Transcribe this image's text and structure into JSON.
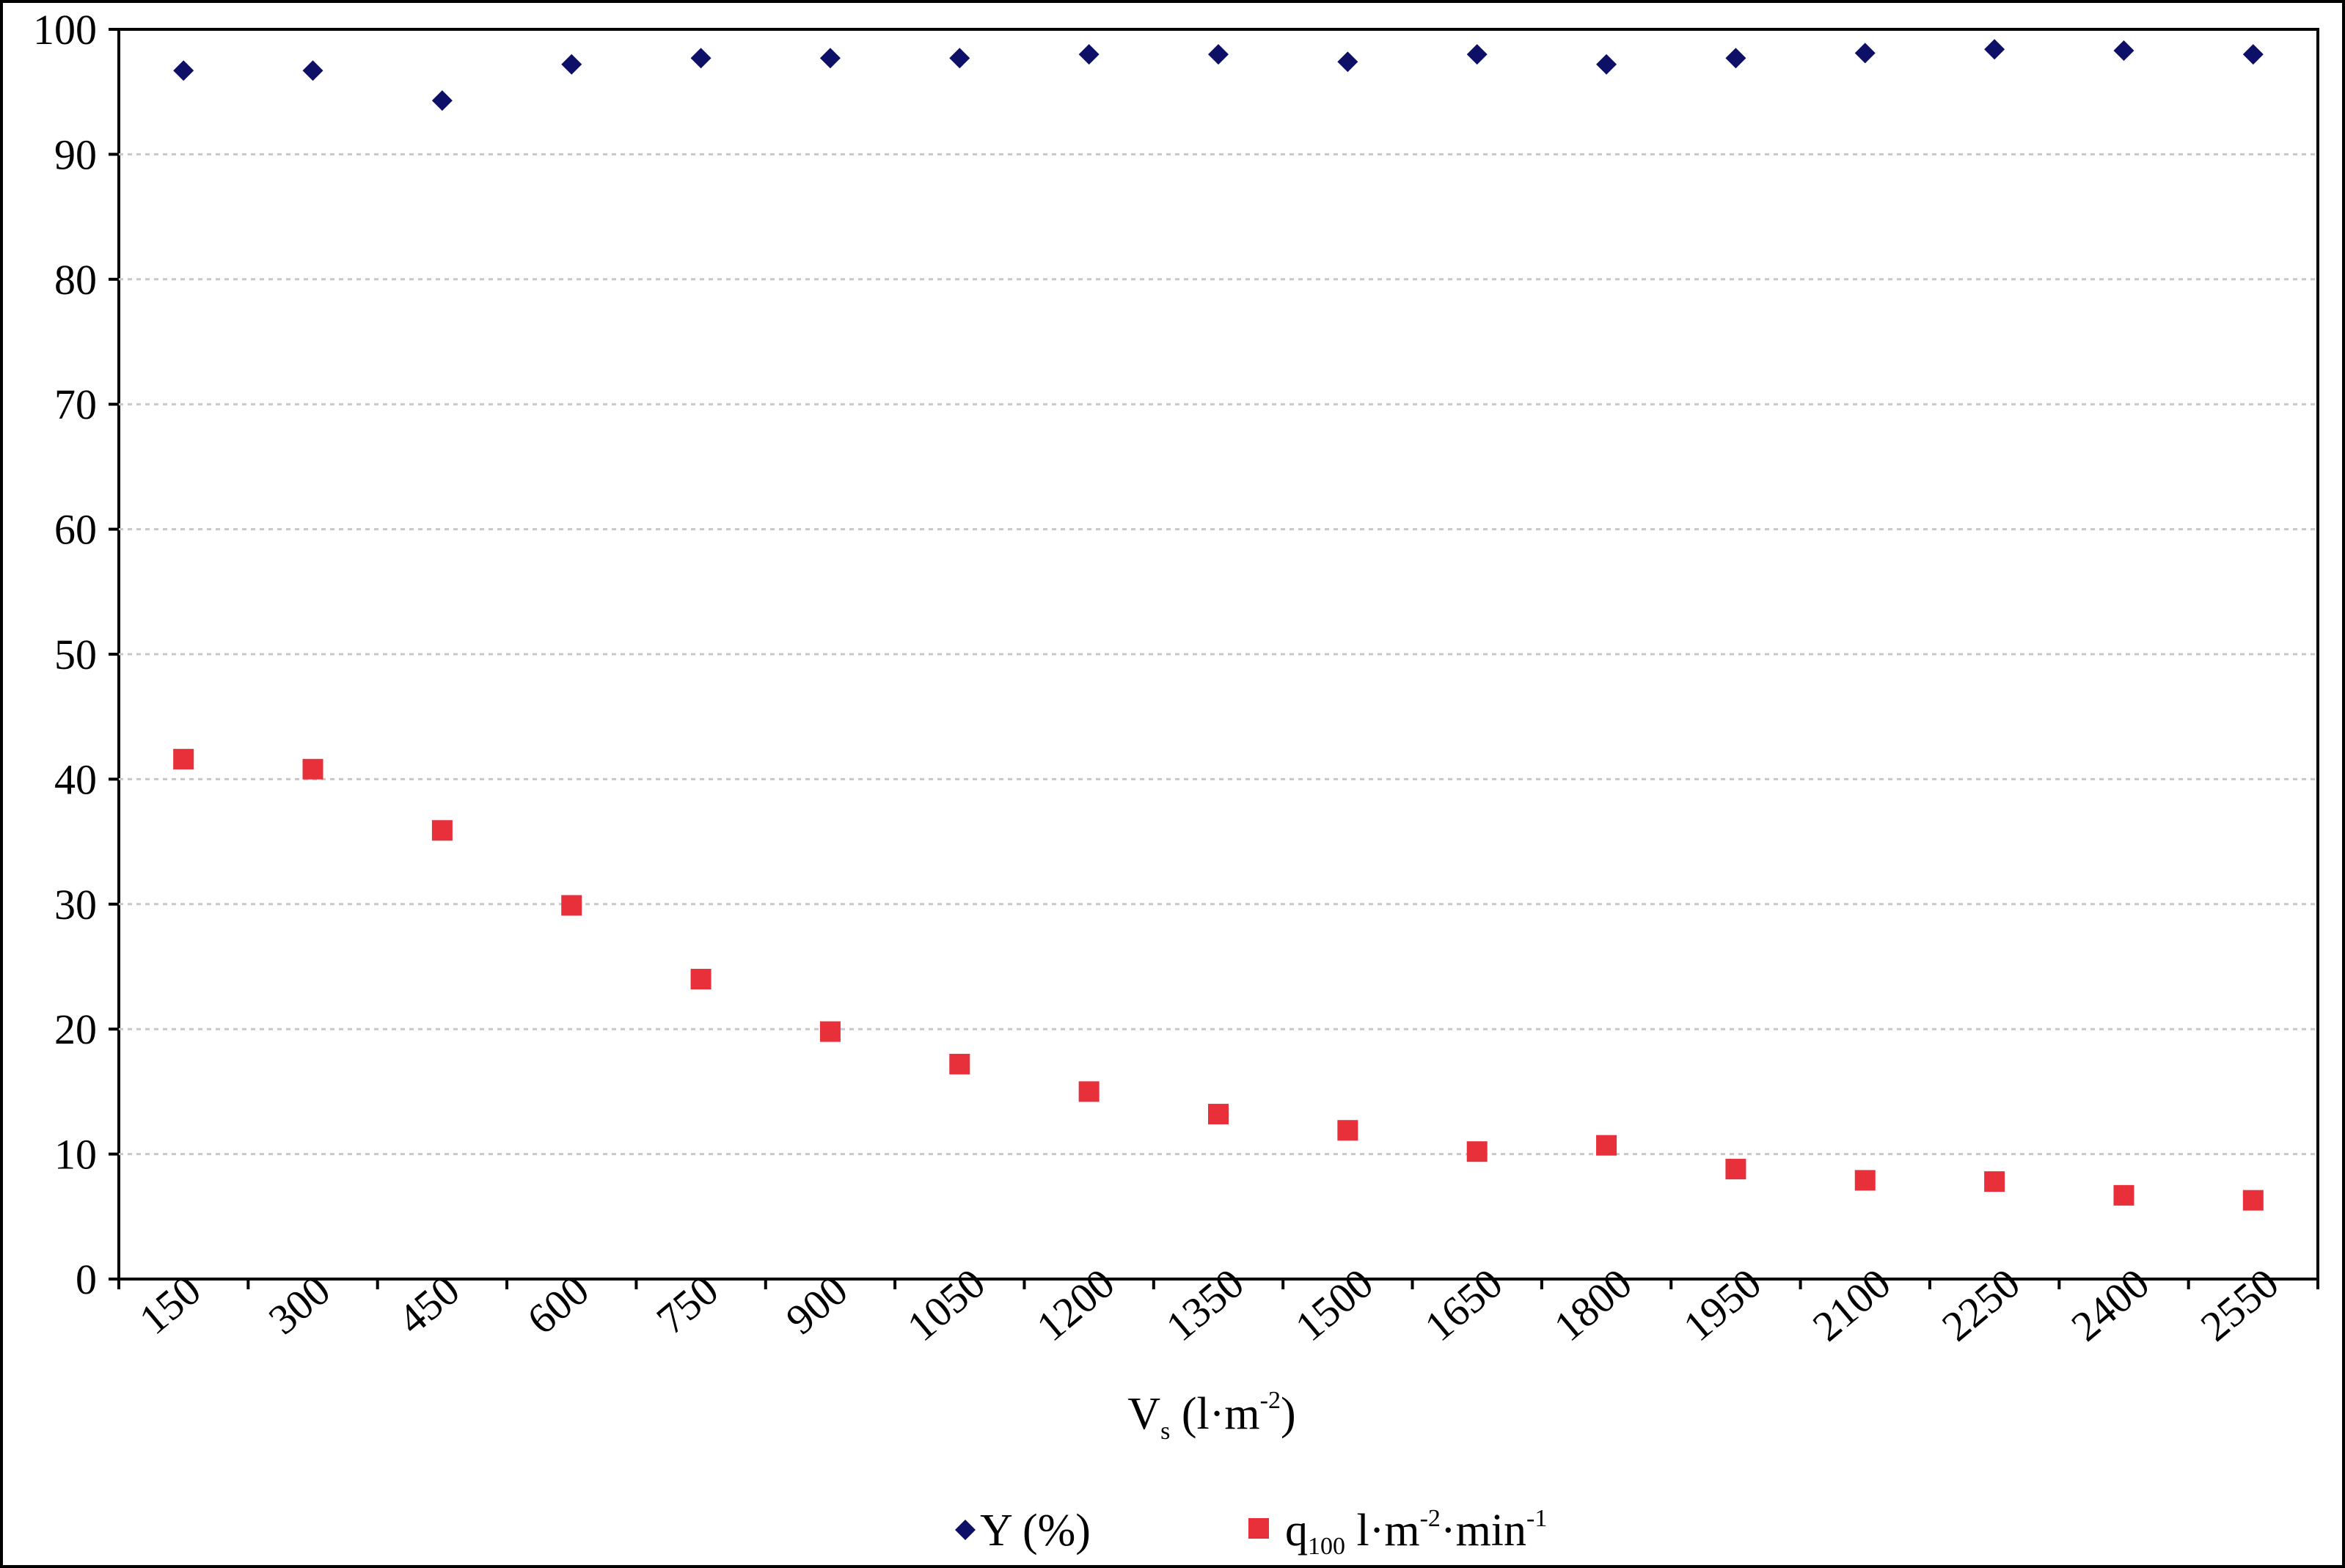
{
  "chart_data": {
    "type": "scatter",
    "xlabel": {
      "main": "V",
      "sub": "s",
      "unit_open": " (l·m",
      "unit_sup": "-2",
      "unit_close": ")"
    },
    "ylabel": "",
    "categories": [
      "150",
      "300",
      "450",
      "600",
      "750",
      "900",
      "1050",
      "1200",
      "1350",
      "1500",
      "1650",
      "1800",
      "1950",
      "2100",
      "2250",
      "2400",
      "2550"
    ],
    "ylim": [
      0,
      100
    ],
    "yticks": [
      "0",
      "10",
      "20",
      "30",
      "40",
      "50",
      "60",
      "70",
      "80",
      "90",
      "100"
    ],
    "grid": true,
    "legend_position": "bottom",
    "series": [
      {
        "key": "Y",
        "marker": "diamond",
        "color": "#0d1066",
        "legend": {
          "main": "Y (%)"
        },
        "values": [
          96.7,
          96.7,
          94.3,
          97.2,
          97.7,
          97.7,
          97.7,
          98.0,
          98.0,
          97.4,
          98.0,
          97.2,
          97.7,
          98.1,
          98.4,
          98.3,
          98.0
        ]
      },
      {
        "key": "q100",
        "marker": "square",
        "color": "#e8303a",
        "legend": {
          "main": "q",
          "sub": "100",
          "p1": " l·m",
          "sup1": "-2",
          "p2": "·min",
          "sup2": "-1"
        },
        "values": [
          41.6,
          40.8,
          35.9,
          29.9,
          24.0,
          19.8,
          17.2,
          15.0,
          13.2,
          11.9,
          10.2,
          10.7,
          8.8,
          7.9,
          7.8,
          6.7,
          6.3
        ]
      }
    ]
  }
}
